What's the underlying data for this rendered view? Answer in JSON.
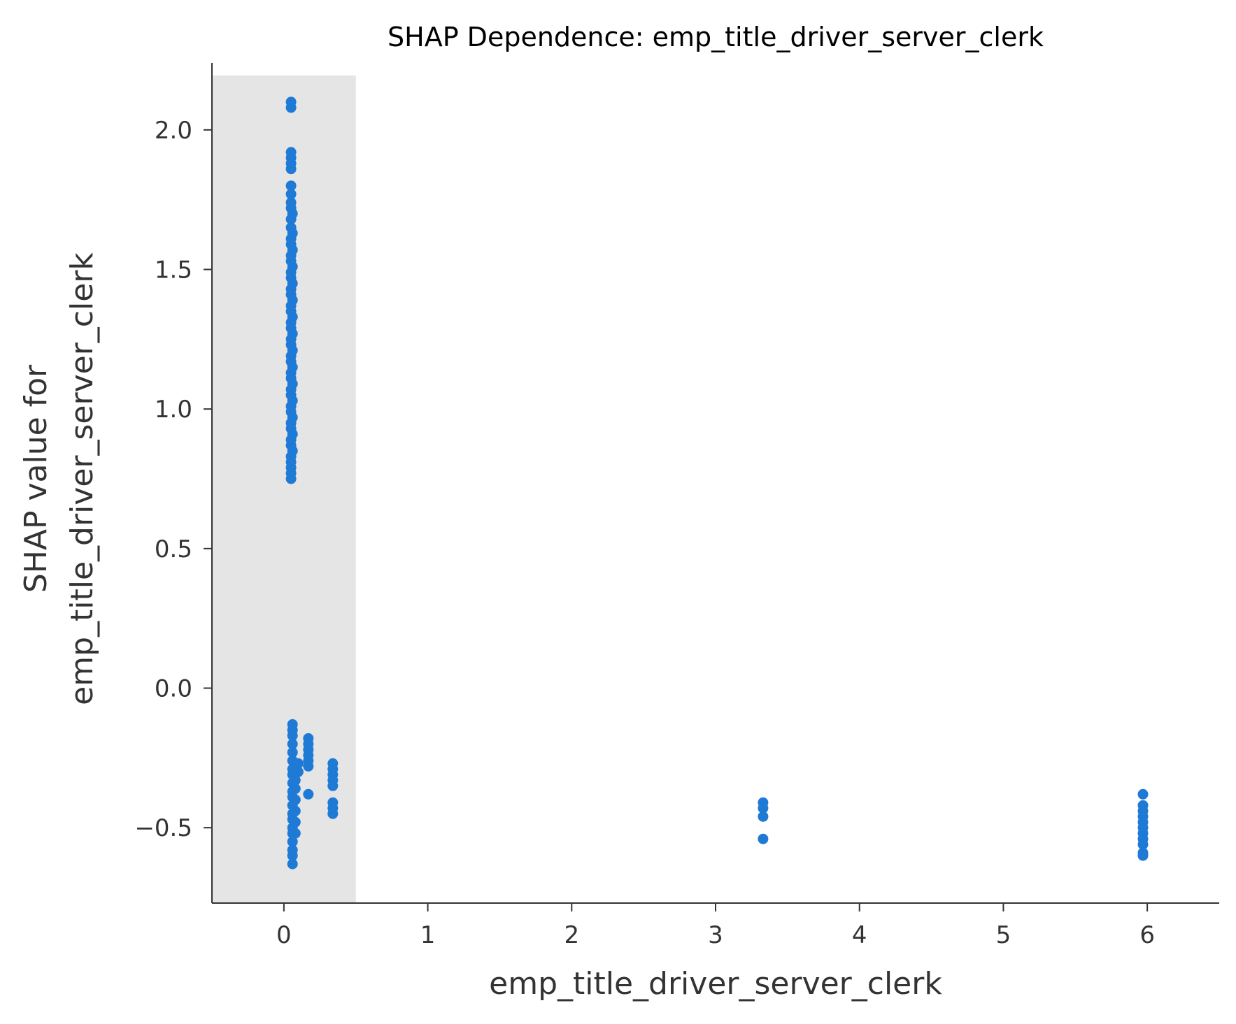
{
  "chart_data": {
    "type": "scatter",
    "title": "SHAP Dependence: emp_title_driver_server_clerk",
    "xlabel": "emp_title_driver_server_clerk",
    "ylabel_line1": "SHAP value for",
    "ylabel_line2": "emp_title_driver_server_clerk",
    "xlim": [
      -0.5,
      6.5
    ],
    "ylim": [
      -0.77,
      2.24
    ],
    "xticks": [
      0,
      1,
      2,
      3,
      4,
      5,
      6
    ],
    "xtick_labels": [
      "0",
      "1",
      "2",
      "3",
      "4",
      "5",
      "6"
    ],
    "yticks": [
      -0.5,
      0.0,
      0.5,
      1.0,
      1.5,
      2.0
    ],
    "ytick_labels": [
      "−0.5",
      "0.0",
      "0.5",
      "1.0",
      "1.5",
      "2.0"
    ],
    "highlight_region": {
      "x": [
        -0.5,
        0.5
      ],
      "color": "#e5e5e5"
    },
    "grid": false,
    "legend": "none",
    "point_color": "#1f7ad6",
    "series": [
      {
        "points": [
          [
            0.05,
            2.1
          ],
          [
            0.05,
            2.08
          ],
          [
            0.05,
            1.92
          ],
          [
            0.05,
            1.9
          ],
          [
            0.05,
            1.88
          ],
          [
            0.05,
            1.86
          ],
          [
            0.05,
            1.8
          ],
          [
            0.05,
            1.77
          ],
          [
            0.05,
            1.74
          ],
          [
            0.05,
            1.72
          ],
          [
            0.06,
            1.7
          ],
          [
            0.05,
            1.68
          ],
          [
            0.05,
            1.65
          ],
          [
            0.06,
            1.63
          ],
          [
            0.05,
            1.61
          ],
          [
            0.05,
            1.59
          ],
          [
            0.06,
            1.57
          ],
          [
            0.05,
            1.55
          ],
          [
            0.05,
            1.53
          ],
          [
            0.06,
            1.51
          ],
          [
            0.05,
            1.49
          ],
          [
            0.05,
            1.47
          ],
          [
            0.06,
            1.45
          ],
          [
            0.05,
            1.43
          ],
          [
            0.05,
            1.41
          ],
          [
            0.06,
            1.39
          ],
          [
            0.05,
            1.37
          ],
          [
            0.05,
            1.35
          ],
          [
            0.06,
            1.33
          ],
          [
            0.05,
            1.31
          ],
          [
            0.05,
            1.29
          ],
          [
            0.06,
            1.27
          ],
          [
            0.05,
            1.25
          ],
          [
            0.05,
            1.23
          ],
          [
            0.06,
            1.21
          ],
          [
            0.05,
            1.19
          ],
          [
            0.05,
            1.17
          ],
          [
            0.06,
            1.15
          ],
          [
            0.05,
            1.13
          ],
          [
            0.05,
            1.11
          ],
          [
            0.06,
            1.09
          ],
          [
            0.05,
            1.07
          ],
          [
            0.05,
            1.05
          ],
          [
            0.06,
            1.03
          ],
          [
            0.05,
            1.01
          ],
          [
            0.05,
            0.99
          ],
          [
            0.06,
            0.97
          ],
          [
            0.05,
            0.95
          ],
          [
            0.05,
            0.93
          ],
          [
            0.06,
            0.91
          ],
          [
            0.05,
            0.89
          ],
          [
            0.05,
            0.87
          ],
          [
            0.06,
            0.85
          ],
          [
            0.05,
            0.83
          ],
          [
            0.05,
            0.81
          ],
          [
            0.05,
            0.79
          ],
          [
            0.05,
            0.77
          ],
          [
            0.05,
            0.75
          ],
          [
            0.06,
            -0.13
          ],
          [
            0.06,
            -0.15
          ],
          [
            0.06,
            -0.17
          ],
          [
            0.06,
            -0.2
          ],
          [
            0.06,
            -0.23
          ],
          [
            0.06,
            -0.26
          ],
          [
            0.06,
            -0.29
          ],
          [
            0.06,
            -0.31
          ],
          [
            0.06,
            -0.34
          ],
          [
            0.06,
            -0.37
          ],
          [
            0.06,
            -0.39
          ],
          [
            0.06,
            -0.42
          ],
          [
            0.06,
            -0.45
          ],
          [
            0.06,
            -0.47
          ],
          [
            0.06,
            -0.5
          ],
          [
            0.06,
            -0.52
          ],
          [
            0.06,
            -0.55
          ],
          [
            0.06,
            -0.58
          ],
          [
            0.06,
            -0.6
          ],
          [
            0.06,
            -0.63
          ],
          [
            0.08,
            -0.27
          ],
          [
            0.08,
            -0.3
          ],
          [
            0.08,
            -0.33
          ],
          [
            0.08,
            -0.36
          ],
          [
            0.08,
            -0.4
          ],
          [
            0.08,
            -0.44
          ],
          [
            0.08,
            -0.48
          ],
          [
            0.08,
            -0.52
          ],
          [
            0.1,
            -0.27
          ],
          [
            0.1,
            -0.3
          ],
          [
            0.17,
            -0.18
          ],
          [
            0.17,
            -0.2
          ],
          [
            0.17,
            -0.22
          ],
          [
            0.17,
            -0.24
          ],
          [
            0.17,
            -0.26
          ],
          [
            0.17,
            -0.28
          ],
          [
            0.17,
            -0.38
          ],
          [
            0.34,
            -0.27
          ],
          [
            0.34,
            -0.29
          ],
          [
            0.34,
            -0.31
          ],
          [
            0.34,
            -0.33
          ],
          [
            0.34,
            -0.35
          ],
          [
            0.34,
            -0.41
          ],
          [
            0.34,
            -0.43
          ],
          [
            0.34,
            -0.45
          ],
          [
            3.33,
            -0.41
          ],
          [
            3.33,
            -0.43
          ],
          [
            3.33,
            -0.46
          ],
          [
            3.33,
            -0.54
          ],
          [
            5.97,
            -0.38
          ],
          [
            5.97,
            -0.42
          ],
          [
            5.97,
            -0.44
          ],
          [
            5.97,
            -0.46
          ],
          [
            5.97,
            -0.48
          ],
          [
            5.97,
            -0.5
          ],
          [
            5.97,
            -0.52
          ],
          [
            5.97,
            -0.54
          ],
          [
            5.97,
            -0.56
          ],
          [
            5.97,
            -0.59
          ],
          [
            5.97,
            -0.6
          ]
        ]
      }
    ]
  }
}
